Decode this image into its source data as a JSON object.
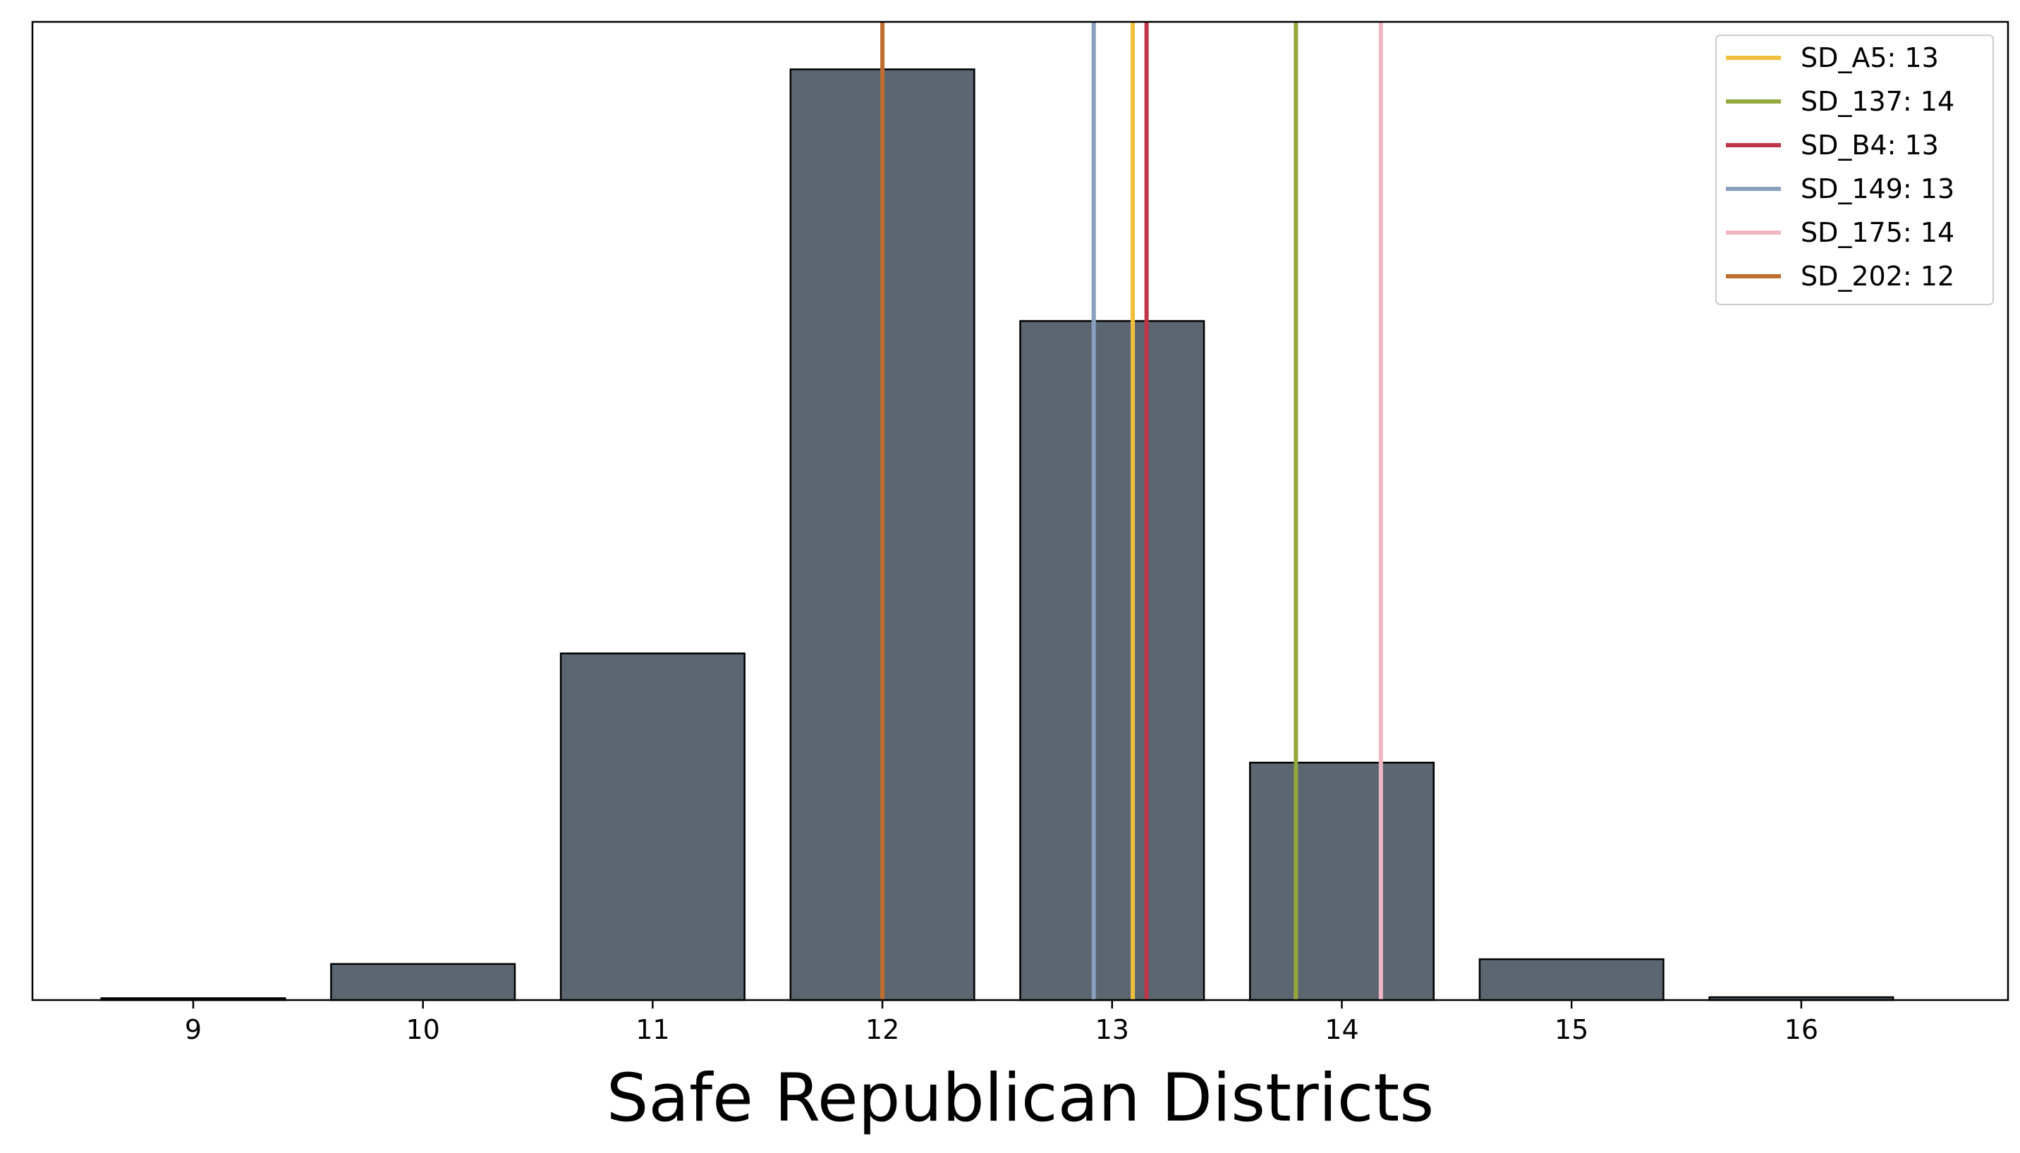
{
  "chart_data": {
    "type": "bar",
    "xlabel": "Safe Republican Districts",
    "ylabel": "",
    "categories": [
      9,
      10,
      11,
      12,
      13,
      14,
      15,
      16
    ],
    "values": [
      0.2,
      3.8,
      36.5,
      98.0,
      71.5,
      25.0,
      4.3,
      0.3
    ],
    "ylim": [
      0,
      103
    ],
    "xlim": [
      8.3,
      16.9
    ],
    "yticks_visible": false,
    "grid": false,
    "bar_color": "#5b6670",
    "bar_edge_color": "#000000",
    "legend_position": "top-right",
    "reference_lines": [
      {
        "label": "SD_A5: 13",
        "x": 13.09,
        "color": "#f0bf3c"
      },
      {
        "label": "SD_137: 14",
        "x": 13.8,
        "color": "#94a93c"
      },
      {
        "label": "SD_B4: 13",
        "x": 13.15,
        "color": "#be3548"
      },
      {
        "label": "SD_149: 13",
        "x": 12.92,
        "color": "#8aa0bf"
      },
      {
        "label": "SD_175: 14",
        "x": 14.17,
        "color": "#f0b7c3"
      },
      {
        "label": "SD_202: 12",
        "x": 12.0,
        "color": "#bf6e30"
      }
    ]
  }
}
